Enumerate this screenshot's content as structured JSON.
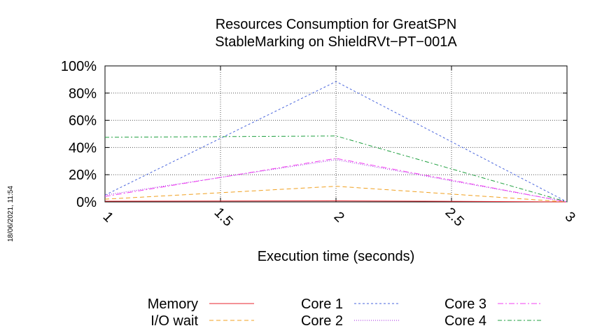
{
  "timestamp": "18/06/2021, 11:54",
  "chart_data": {
    "type": "line",
    "title": "Resources Consumption for GreatSPN",
    "subtitle": "StableMarking on ShieldRVt−PT−001A",
    "xlabel": "Execution time (seconds)",
    "ylabel": "",
    "xlim": [
      1,
      3
    ],
    "ylim": [
      0,
      100
    ],
    "x_ticks": [
      "1",
      "1.5",
      "2",
      "2.5",
      "3"
    ],
    "y_ticks": [
      "0%",
      "20%",
      "40%",
      "60%",
      "80%",
      "100%"
    ],
    "grid": true,
    "legend_position": "bottom",
    "x": [
      1,
      2,
      3
    ],
    "series": [
      {
        "name": "Memory",
        "values": [
          0.5,
          0.8,
          0
        ],
        "color": "#e8242c",
        "dash": ""
      },
      {
        "name": "I/O wait",
        "values": [
          2,
          11.5,
          0
        ],
        "color": "#f0a020",
        "dash": "6,4"
      },
      {
        "name": "Core 1",
        "values": [
          5,
          88.5,
          0
        ],
        "color": "#4a66dd",
        "dash": "3,3"
      },
      {
        "name": "Core 2",
        "values": [
          5,
          31,
          0
        ],
        "color": "#a020e0",
        "dash": "1,2"
      },
      {
        "name": "Core 3",
        "values": [
          4,
          32,
          0
        ],
        "color": "#f040f0",
        "dash": "8,3,2,3"
      },
      {
        "name": "Core 4",
        "values": [
          47.5,
          48.5,
          0
        ],
        "color": "#20a040",
        "dash": "6,3,2,3"
      }
    ]
  }
}
